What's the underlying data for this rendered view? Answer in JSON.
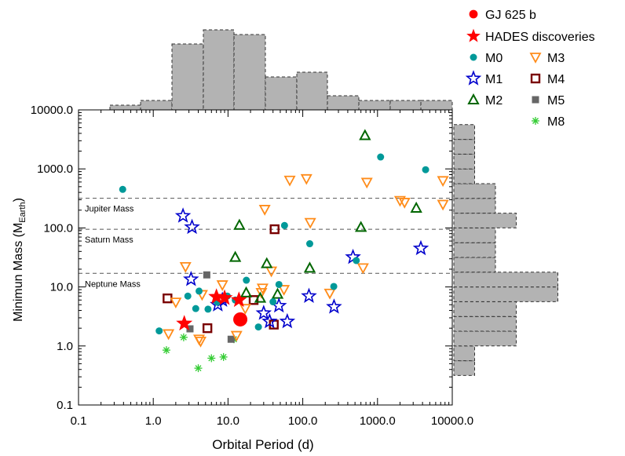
{
  "chart_data": {
    "type": "scatter",
    "xlabel": "Orbital Period (d)",
    "ylabel_main": "Minimun Mass (M",
    "ylabel_sub": "Earth",
    "ylabel_close": ")",
    "xscale": "log",
    "yscale": "log",
    "xlim": [
      0.1,
      10000
    ],
    "ylim": [
      0.1,
      10000
    ],
    "x_ticks": [
      {
        "v": 0.1,
        "label": "0.1"
      },
      {
        "v": 1,
        "label": "1.0"
      },
      {
        "v": 10,
        "label": "10.0"
      },
      {
        "v": 100,
        "label": "100.0"
      },
      {
        "v": 1000,
        "label": "1000.0"
      },
      {
        "v": 10000,
        "label": "10000.0"
      }
    ],
    "y_ticks": [
      {
        "v": 0.1,
        "label": "0.1"
      },
      {
        "v": 1,
        "label": "1.0"
      },
      {
        "v": 10,
        "label": "10.0"
      },
      {
        "v": 100,
        "label": "100.0"
      },
      {
        "v": 1000,
        "label": "1000.0"
      },
      {
        "v": 10000,
        "label": "10000.0"
      }
    ],
    "reference_lines": [
      {
        "label": "Jupiter Mass",
        "y": 318
      },
      {
        "label": "Saturn Mass",
        "y": 95
      },
      {
        "label": "Neptune Mass",
        "y": 17
      }
    ],
    "legend_placement": "outside-top-right",
    "legend": [
      {
        "label": "GJ 625 b",
        "marker": "circle-large",
        "color": "#ff0000"
      },
      {
        "label": "HADES discoveries",
        "marker": "star-filled",
        "color": "#ff0000"
      },
      {
        "label": "M0",
        "marker": "dot",
        "color": "#009999"
      },
      {
        "label": "M3",
        "marker": "tri-down",
        "color": "#ff8c1a"
      },
      {
        "label": "M1",
        "marker": "star-open",
        "color": "#0000cc"
      },
      {
        "label": "M4",
        "marker": "square-open",
        "color": "#7a0000"
      },
      {
        "label": "M2",
        "marker": "tri-up",
        "color": "#006600"
      },
      {
        "label": "M5",
        "marker": "square-filled",
        "color": "#666666"
      },
      {
        "label": "M8",
        "marker": "asterisk",
        "color": "#33cc33"
      }
    ],
    "series": [
      {
        "name": "GJ 625 b",
        "marker": "circle-large",
        "color": "#ff0000",
        "points": [
          [
            14.6,
            2.82
          ]
        ]
      },
      {
        "name": "HADES discoveries",
        "marker": "star-filled",
        "color": "#ff0000",
        "points": [
          [
            2.6,
            2.4
          ],
          [
            7.0,
            6.8
          ],
          [
            9.0,
            6.5
          ],
          [
            14.0,
            6.0
          ]
        ]
      },
      {
        "name": "M0",
        "marker": "dot",
        "color": "#009999",
        "points": [
          [
            0.39,
            450
          ],
          [
            1.2,
            1.8
          ],
          [
            2.9,
            7.0
          ],
          [
            3.7,
            4.3
          ],
          [
            4.1,
            8.5
          ],
          [
            5.4,
            4.2
          ],
          [
            7.2,
            5.5
          ],
          [
            9.8,
            7.0
          ],
          [
            12.5,
            6.0
          ],
          [
            17.6,
            13.0
          ],
          [
            25.5,
            2.1
          ],
          [
            40.0,
            5.6
          ],
          [
            48.0,
            11.0
          ],
          [
            57.0,
            110
          ],
          [
            124,
            54
          ],
          [
            260,
            10.2
          ],
          [
            520,
            28
          ],
          [
            1100,
            1590
          ],
          [
            4400,
            970
          ]
        ]
      },
      {
        "name": "M1",
        "marker": "star-open",
        "color": "#0000cc",
        "points": [
          [
            2.5,
            160
          ],
          [
            3.3,
            103
          ],
          [
            3.2,
            13.5
          ],
          [
            7.3,
            5.0
          ],
          [
            8.4,
            6.0
          ],
          [
            30.0,
            3.6
          ],
          [
            36.0,
            2.6
          ],
          [
            48.0,
            4.8
          ],
          [
            62.0,
            2.6
          ],
          [
            121,
            7.0
          ],
          [
            262,
            4.6
          ],
          [
            470,
            32
          ],
          [
            3800,
            45
          ]
        ]
      },
      {
        "name": "M2",
        "marker": "tri-up",
        "color": "#006600",
        "points": [
          [
            12.5,
            32
          ],
          [
            14.2,
            112
          ],
          [
            17.5,
            8.0
          ],
          [
            27.0,
            6.5
          ],
          [
            33.0,
            25
          ],
          [
            46.0,
            7.6
          ],
          [
            124,
            21
          ],
          [
            600,
            103
          ],
          [
            680,
            3700
          ],
          [
            3300,
            218
          ]
        ]
      },
      {
        "name": "M3",
        "marker": "tri-down",
        "color": "#ff8c1a",
        "points": [
          [
            1.6,
            1.6
          ],
          [
            2.0,
            5.5
          ],
          [
            2.7,
            22
          ],
          [
            4.1,
            1.3
          ],
          [
            4.5,
            7.4
          ],
          [
            4.3,
            1.2
          ],
          [
            8.4,
            10.8
          ],
          [
            13.0,
            1.5
          ],
          [
            17.0,
            4.3
          ],
          [
            28.0,
            8.0
          ],
          [
            29.0,
            9.5
          ],
          [
            31.0,
            205
          ],
          [
            38.0,
            18.5
          ],
          [
            56.0,
            9.0
          ],
          [
            67.0,
            640
          ],
          [
            112,
            680
          ],
          [
            126,
            123
          ],
          [
            230,
            7.8
          ],
          [
            640,
            21
          ],
          [
            720,
            590
          ],
          [
            2000,
            290
          ],
          [
            2300,
            270
          ],
          [
            7500,
            630
          ],
          [
            7500,
            250
          ]
        ]
      },
      {
        "name": "M4",
        "marker": "square-open",
        "color": "#7a0000",
        "points": [
          [
            1.55,
            6.4
          ],
          [
            5.3,
            2.0
          ],
          [
            22.0,
            6.0
          ],
          [
            41.0,
            2.3
          ],
          [
            42.0,
            95
          ]
        ]
      },
      {
        "name": "M5",
        "marker": "square-filled",
        "color": "#666666",
        "points": [
          [
            3.1,
            1.95
          ],
          [
            5.2,
            16
          ],
          [
            11.0,
            1.3
          ]
        ]
      },
      {
        "name": "M8",
        "marker": "asterisk",
        "color": "#33cc33",
        "points": [
          [
            1.5,
            0.85
          ],
          [
            2.55,
            1.4
          ],
          [
            4.0,
            0.42
          ],
          [
            6.0,
            0.62
          ],
          [
            8.7,
            0.65
          ],
          [
            12.0,
            1.3
          ]
        ]
      }
    ],
    "top_histogram": {
      "bin_edges_log10": [
        -1.0,
        -0.58,
        -0.17,
        0.25,
        0.67,
        1.08,
        1.5,
        1.92,
        2.33,
        2.75,
        3.17,
        3.58,
        4.0
      ],
      "counts": [
        0,
        1,
        2,
        14,
        17,
        16,
        7,
        8,
        3,
        2,
        2,
        2
      ]
    },
    "right_histogram": {
      "bin_edges_log10": [
        -0.5,
        -0.25,
        0.0,
        0.25,
        0.5,
        0.75,
        1.0,
        1.25,
        1.5,
        1.75,
        2.0,
        2.25,
        2.5,
        2.75,
        3.0,
        3.25,
        3.5,
        3.75
      ],
      "counts": [
        1,
        1,
        3,
        3,
        3,
        5,
        5,
        2,
        2,
        2,
        3,
        2,
        2,
        1,
        1,
        1,
        1
      ]
    }
  }
}
